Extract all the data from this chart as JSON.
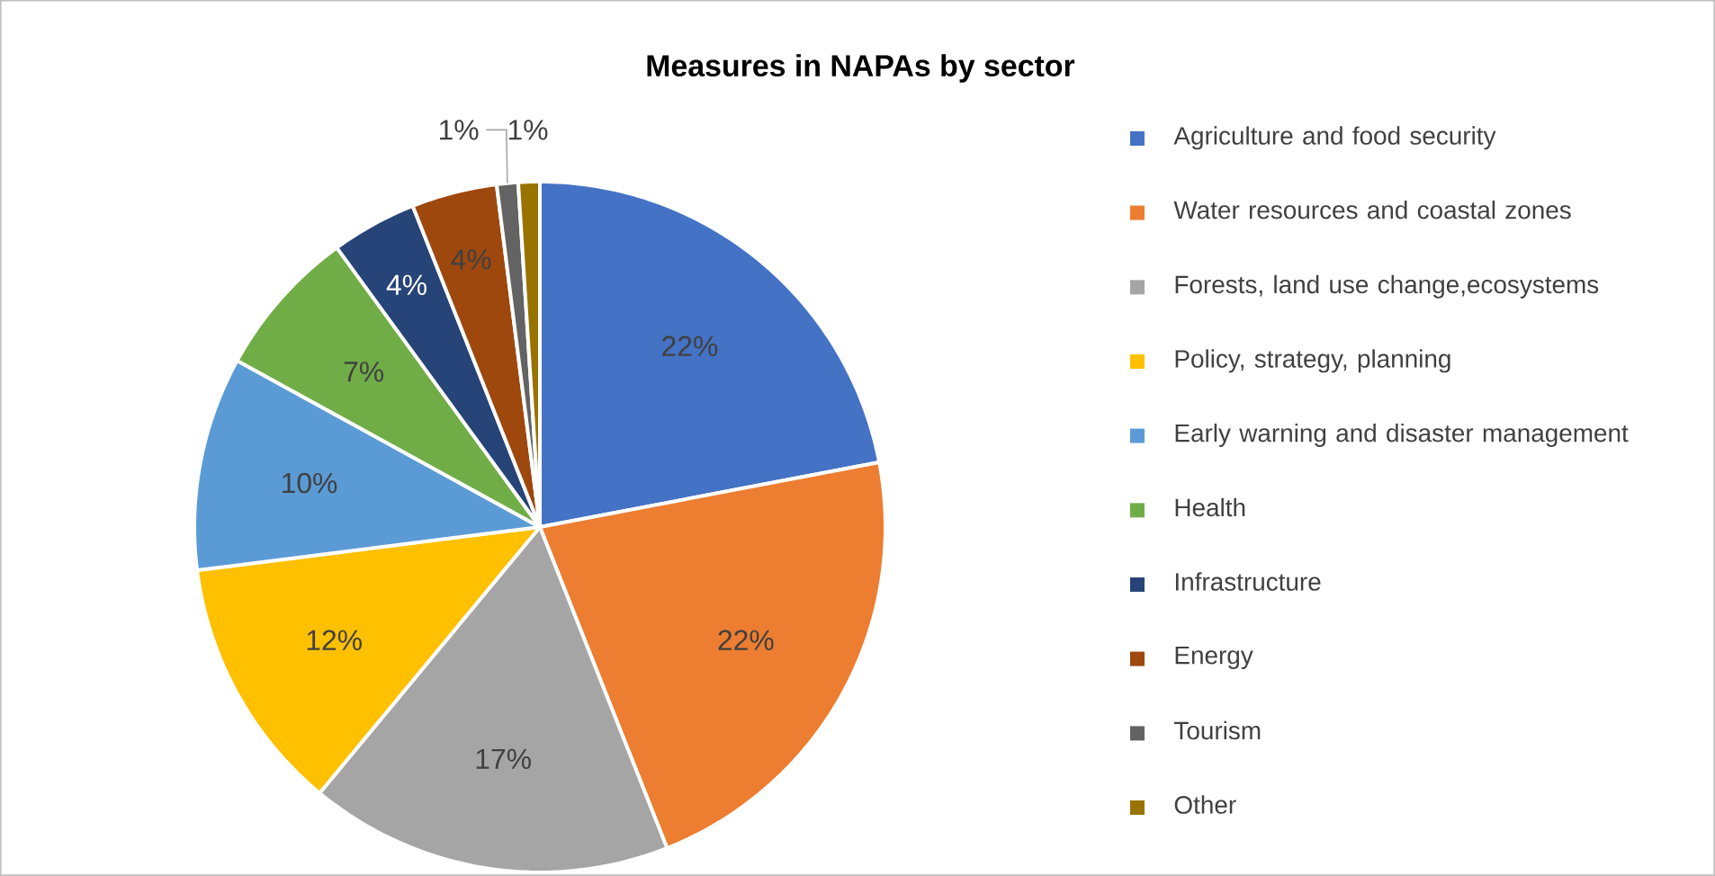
{
  "chart_data": {
    "type": "pie",
    "title": "Measures in NAPAs by sector",
    "categories": [
      "Agriculture and food security",
      "Water resources and coastal zones",
      "Forests, land use change,ecosystems",
      "Policy, strategy, planning",
      "Early warning and disaster management",
      "Health",
      "Infrastructure",
      "Energy",
      "Tourism",
      "Other"
    ],
    "values": [
      22,
      22,
      17,
      12,
      10,
      7,
      4,
      4,
      1,
      1
    ],
    "colors": [
      "#4472c4",
      "#ed7d31",
      "#a5a5a5",
      "#ffc000",
      "#5b9bd5",
      "#70ad47",
      "#264478",
      "#9e480e",
      "#636363",
      "#997300"
    ],
    "value_labels": [
      "22%",
      "22%",
      "17%",
      "12%",
      "10%",
      "7%",
      "4%",
      "4%",
      "1%",
      "1%"
    ],
    "legend": "right"
  }
}
